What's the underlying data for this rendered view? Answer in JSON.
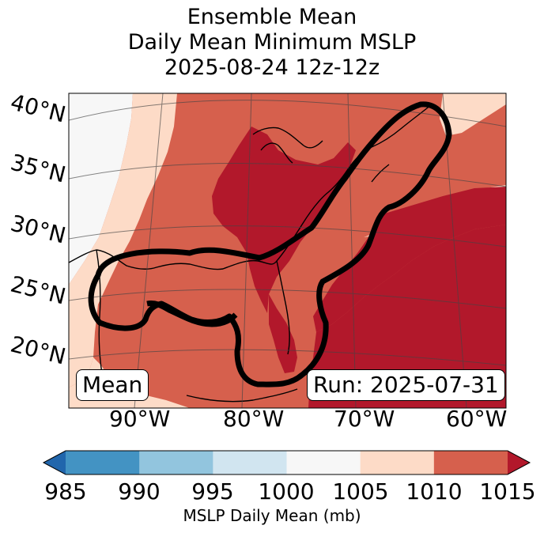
{
  "title": {
    "line1": "Ensemble Mean",
    "line2": "Daily Mean Minimum MSLP",
    "line3": "2025-08-24 12z-12z"
  },
  "map": {
    "lat_labels": [
      "40°N",
      "35°N",
      "30°N",
      "25°N",
      "20°N"
    ],
    "lon_labels": [
      "90°W",
      "80°W",
      "70°W",
      "60°W"
    ],
    "left_box": "Mean",
    "right_box": "Run: 2025-07-31",
    "colors": {
      "land_1010_1015": "#d6604d",
      "land_1015_plus": "#b2182b",
      "band_1005_1010": "#fddbc7",
      "band_1000_1005": "#f7f7f7",
      "contour": "#000000"
    }
  },
  "colorbar": {
    "label": "MSLP Daily Mean (mb)",
    "ticks": [
      "985",
      "990",
      "995",
      "1000",
      "1005",
      "1010",
      "1015"
    ],
    "colors": [
      "#4393c3",
      "#92c5de",
      "#d1e5f0",
      "#f7f7f7",
      "#fddbc7",
      "#d6604d"
    ],
    "under_color": "#2166ac",
    "over_color": "#b2182b"
  }
}
